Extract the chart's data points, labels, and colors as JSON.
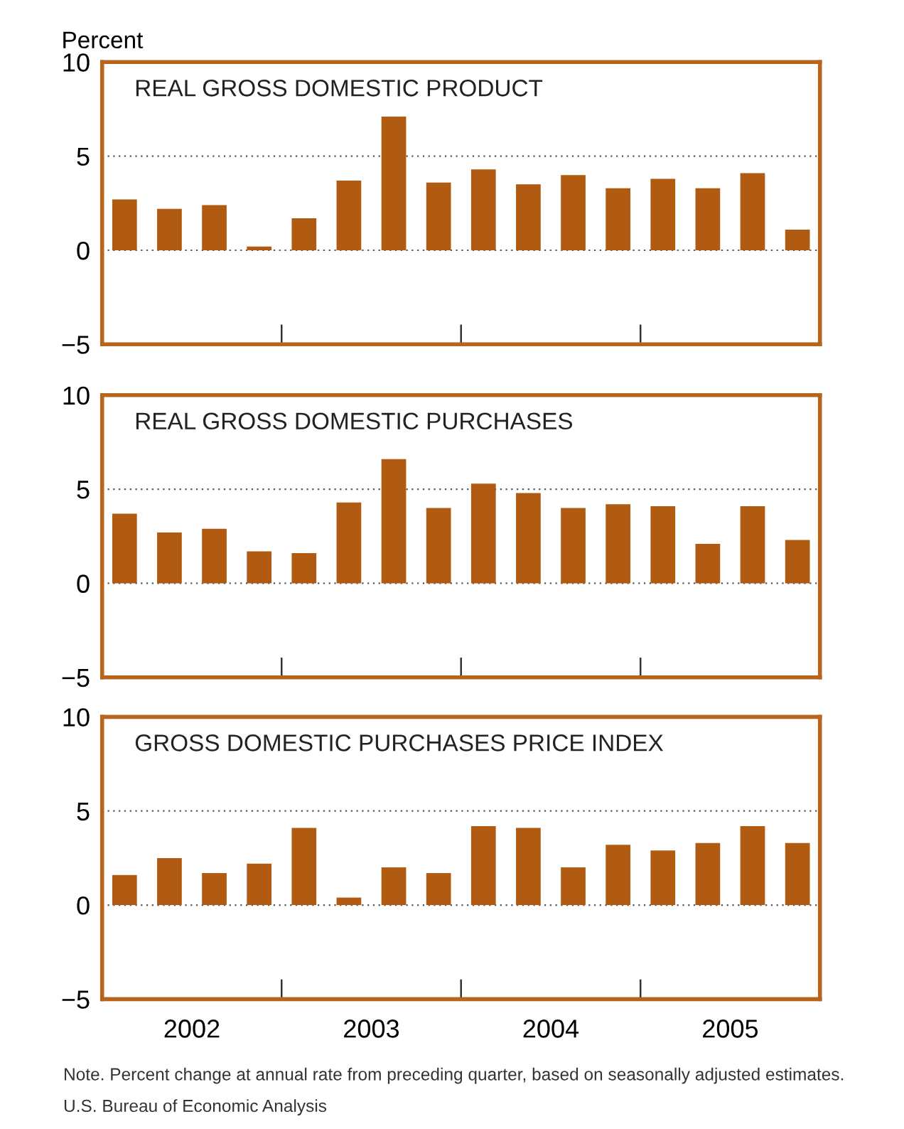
{
  "chart_data": [
    {
      "type": "bar",
      "title": "REAL GROSS DOMESTIC PRODUCT",
      "ylabel": "Percent",
      "x": [
        2002.125,
        2002.375,
        2002.625,
        2002.875,
        2003.125,
        2003.375,
        2003.625,
        2003.875,
        2004.125,
        2004.375,
        2004.625,
        2004.875,
        2005.125,
        2005.375,
        2005.625,
        2005.875
      ],
      "series": [
        {
          "color": "#b05a12",
          "values": [
            2.7,
            2.2,
            2.4,
            0.2,
            1.7,
            3.7,
            7.1,
            3.6,
            4.3,
            3.5,
            4.0,
            3.3,
            3.8,
            3.3,
            4.1,
            1.1
          ]
        }
      ],
      "xlim": [
        2002,
        2006
      ],
      "xticks": [
        {
          "value": 2003,
          "label": null
        },
        {
          "value": 2004,
          "label": null
        },
        {
          "value": 2005,
          "label": null
        }
      ],
      "ylim": [
        -5,
        10
      ],
      "yticks": [
        -5,
        0,
        5,
        10
      ],
      "grid": "y",
      "tick_labels": "y"
    },
    {
      "type": "bar",
      "title": "REAL GROSS DOMESTIC PURCHASES",
      "x": [
        2002.125,
        2002.375,
        2002.625,
        2002.875,
        2003.125,
        2003.375,
        2003.625,
        2003.875,
        2004.125,
        2004.375,
        2004.625,
        2004.875,
        2005.125,
        2005.375,
        2005.625,
        2005.875
      ],
      "series": [
        {
          "color": "#b05a12",
          "values": [
            3.7,
            2.7,
            2.9,
            1.7,
            1.6,
            4.3,
            6.6,
            4.0,
            5.3,
            4.8,
            4.0,
            4.2,
            4.1,
            2.1,
            4.1,
            2.3
          ]
        }
      ],
      "xlim": [
        2002,
        2006
      ],
      "xticks": [
        {
          "value": 2003,
          "label": null
        },
        {
          "value": 2004,
          "label": null
        },
        {
          "value": 2005,
          "label": null
        }
      ],
      "ylim": [
        -5,
        10
      ],
      "yticks": [
        -5,
        0,
        5,
        10
      ],
      "grid": "y",
      "tick_labels": "y"
    },
    {
      "type": "bar",
      "title": "GROSS DOMESTIC PURCHASES PRICE INDEX",
      "x": [
        2002.125,
        2002.375,
        2002.625,
        2002.875,
        2003.125,
        2003.375,
        2003.625,
        2003.875,
        2004.125,
        2004.375,
        2004.625,
        2004.875,
        2005.125,
        2005.375,
        2005.625,
        2005.875
      ],
      "series": [
        {
          "color": "#b05a12",
          "values": [
            1.6,
            2.5,
            1.7,
            2.2,
            4.1,
            0.4,
            2.0,
            1.7,
            4.2,
            4.1,
            2.0,
            3.2,
            2.9,
            3.3,
            4.2,
            3.3
          ]
        }
      ],
      "xlim": [
        2002,
        2006
      ],
      "xticks": [
        {
          "value": 2002.5,
          "label": "2002"
        },
        {
          "value": 2003,
          "label": null
        },
        {
          "value": 2003.5,
          "label": "2003"
        },
        {
          "value": 2004,
          "label": null
        },
        {
          "value": 2004.5,
          "label": "2004"
        },
        {
          "value": 2005,
          "label": null
        },
        {
          "value": 2005.5,
          "label": "2005"
        }
      ],
      "ylim": [
        -5,
        10
      ],
      "yticks": [
        -5,
        0,
        5,
        10
      ],
      "grid": "y",
      "annotations": [
        "Note. Percent change at annual rate from preceding quarter, based on seasonally adjusted estimates.",
        "U.S. Bureau of Economic Analysis"
      ]
    }
  ]
}
